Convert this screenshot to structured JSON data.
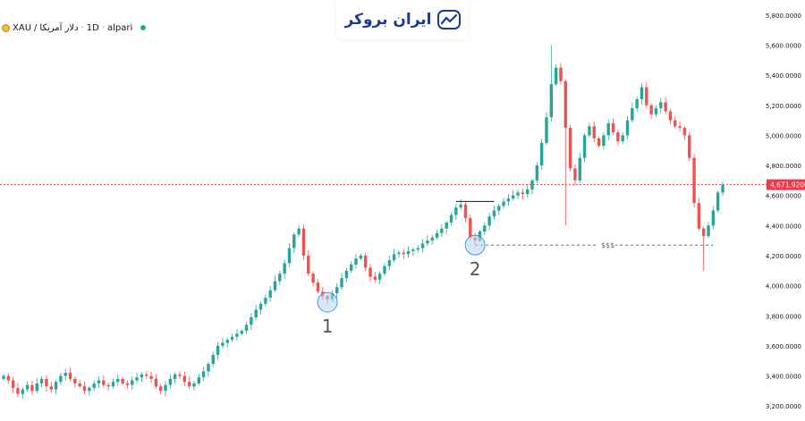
{
  "header": {
    "symbol": "XAU",
    "slash": "/",
    "quote": "دلار آمریکا",
    "interval": "1D",
    "exchange": "alpari",
    "separator": "·"
  },
  "brand": {
    "logo_text": "ایران بروکر",
    "color": "#1e3a8a",
    "icon": "chart-logo-icon"
  },
  "colors": {
    "up": "#26a69a",
    "down": "#ef5350",
    "price_line": "#f23645",
    "marker": "#b3d4f2",
    "marker_stroke": "#2f80ed"
  },
  "chart_data": {
    "type": "candlestick",
    "title": "",
    "xlabel": "",
    "ylabel": "",
    "ylim": [
      3100,
      5900
    ],
    "yticks": [
      3200,
      3400,
      3600,
      3800,
      4000,
      4200,
      4400,
      4600,
      4800,
      5000,
      5200,
      5400,
      5600,
      5800
    ],
    "ytick_labels": [
      "3,200.0000",
      "3,400.0000",
      "3,600.0000",
      "3,800.0000",
      "4,000.0000",
      "4,200.0000",
      "4,400.0000",
      "4,600.0000",
      "4,800.0000",
      "5,000.0000",
      "5,200.0000",
      "5,400.0000",
      "5,600.0000",
      "5,800.0000"
    ],
    "grid": false,
    "current_price": 4671.92,
    "current_price_label": "4,671.9200",
    "path": [
      3400,
      3370,
      3320,
      3280,
      3310,
      3340,
      3300,
      3350,
      3380,
      3330,
      3310,
      3360,
      3400,
      3420,
      3380,
      3350,
      3330,
      3300,
      3320,
      3350,
      3370,
      3340,
      3330,
      3360,
      3380,
      3350,
      3340,
      3370,
      3390,
      3410,
      3400,
      3380,
      3330,
      3300,
      3340,
      3380,
      3410,
      3400,
      3360,
      3330,
      3350,
      3390,
      3430,
      3480,
      3540,
      3600,
      3620,
      3640,
      3660,
      3680,
      3700,
      3740,
      3790,
      3840,
      3880,
      3920,
      3970,
      4030,
      4080,
      4150,
      4250,
      4340,
      4380,
      4200,
      4080,
      4020,
      3960,
      3930,
      3910,
      3950,
      3990,
      4050,
      4100,
      4140,
      4180,
      4200,
      4120,
      4060,
      4040,
      4080,
      4130,
      4170,
      4210,
      4220,
      4210,
      4230,
      4240,
      4250,
      4280,
      4300,
      4320,
      4350,
      4380,
      4420,
      4470,
      4520,
      4540,
      4450,
      4320,
      4300,
      4360,
      4400,
      4460,
      4500,
      4530,
      4560,
      4580,
      4600,
      4620,
      4610,
      4640,
      4700,
      4800,
      4950,
      5120,
      5340,
      5450,
      5360,
      5050,
      4780,
      4700,
      4850,
      5000,
      5060,
      4980,
      4930,
      5000,
      5080,
      5020,
      4960,
      5000,
      5100,
      5180,
      5240,
      5320,
      5200,
      5140,
      5180,
      5220,
      5160,
      5100,
      5060,
      5050,
      5000,
      4850,
      4550,
      4380,
      4330,
      4400,
      4500,
      4620,
      4672
    ],
    "annotations": [
      {
        "label": "1",
        "x_index": 68,
        "price": 3890
      },
      {
        "label": "2",
        "x_index": 99,
        "price": 4270
      }
    ],
    "liquidity_label": "$$$",
    "liquidity_level": 4270,
    "resistance_level": 4560
  }
}
